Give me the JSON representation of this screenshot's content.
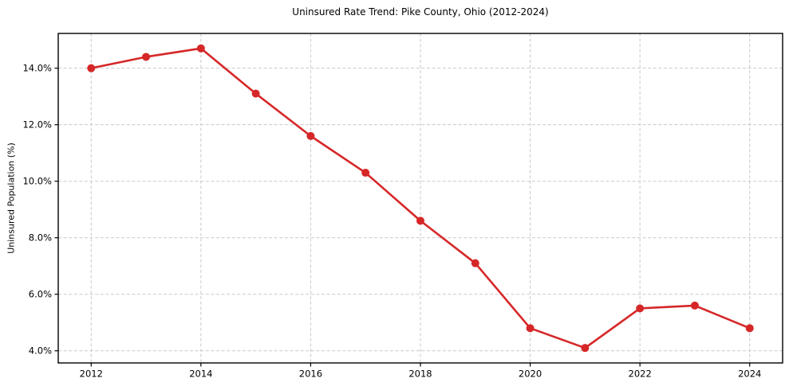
{
  "chart_data": {
    "type": "line",
    "title": "Uninsured Rate Trend: Pike County, Ohio (2012-2024)",
    "xlabel": "",
    "ylabel": "Uninsured Population (%)",
    "x": [
      2012,
      2013,
      2014,
      2015,
      2016,
      2017,
      2018,
      2019,
      2020,
      2021,
      2022,
      2023,
      2024
    ],
    "values": [
      14.0,
      14.4,
      14.7,
      13.1,
      11.6,
      10.3,
      8.6,
      7.1,
      4.8,
      4.1,
      5.5,
      5.6,
      4.8
    ],
    "xlim": [
      2011.4,
      2024.6
    ],
    "ylim": [
      3.57,
      15.23
    ],
    "xticks": {
      "values": [
        2012,
        2014,
        2016,
        2018,
        2020,
        2022,
        2024
      ],
      "labels": [
        "2012",
        "2014",
        "2016",
        "2018",
        "2020",
        "2022",
        "2024"
      ]
    },
    "yticks": {
      "values": [
        4,
        6,
        8,
        10,
        12,
        14
      ],
      "labels": [
        "4.0%",
        "6.0%",
        "8.0%",
        "10.0%",
        "12.0%",
        "14.0%"
      ]
    },
    "grid": true,
    "legend": "none",
    "line_color": "#d62728",
    "marker": "circle",
    "marker_radius": 5,
    "line_width": 2.6,
    "grid_color": "#c9c9c9",
    "spine_color": "#000000",
    "background": "#ffffff"
  }
}
